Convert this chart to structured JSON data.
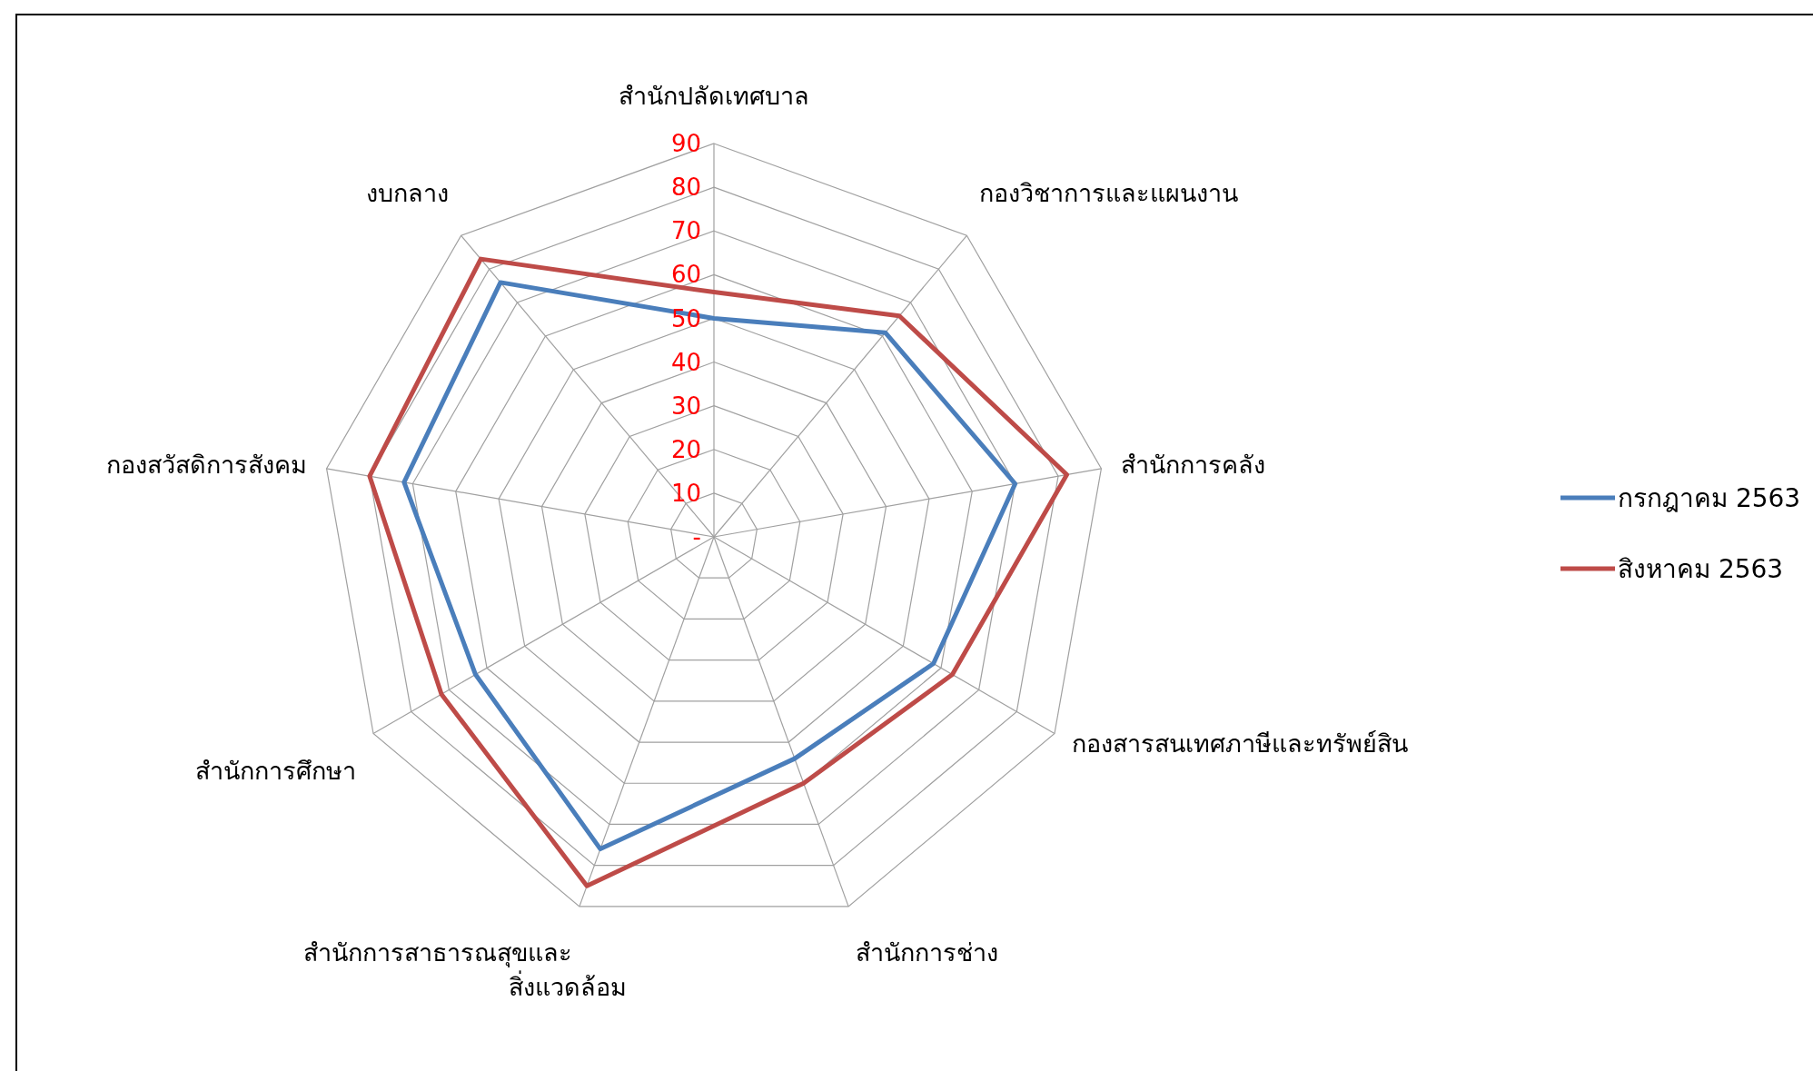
{
  "chart_data": {
    "type": "radar",
    "categories": [
      "สำนักปลัดเทศบาล",
      "กองวิชาการและแผนงาน",
      "สำนักการคลัง",
      "กองสารสนเทศภาษีและทรัพย์สิน",
      "สำนักการช่าง",
      "สำนักการสาธารณสุขและ\nสิ่งแวดล้อม",
      "สำนักการศึกษา",
      "กองสวัสดิการสังคม",
      "งบกลาง"
    ],
    "series": [
      {
        "name": "กรกฎาคม 2563",
        "color": "#4a7ebb",
        "values": [
          50,
          61,
          70,
          58,
          54,
          76,
          63,
          72,
          76
        ]
      },
      {
        "name": "สิงหาคม 2563",
        "color": "#be4b48",
        "values": [
          56,
          66,
          82,
          63,
          60,
          85,
          72,
          80,
          83
        ]
      }
    ],
    "ylim": [
      0,
      90
    ],
    "yticks": [
      {
        "value": 0,
        "label": "-"
      },
      10,
      20,
      30,
      40,
      50,
      60,
      70,
      80,
      90
    ],
    "grid": true,
    "legend": "right"
  }
}
